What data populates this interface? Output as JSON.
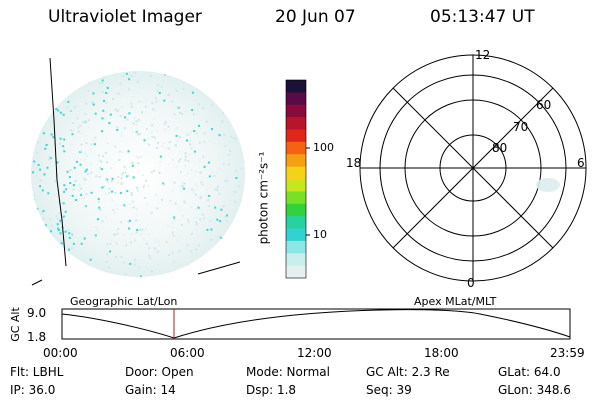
{
  "header": {
    "instrument": "Ultraviolet Imager",
    "date": "20 Jun 07",
    "time": "05:13:47 UT"
  },
  "colorbar": {
    "unit_label": "photon cm⁻²s⁻¹",
    "ticks": [
      "100",
      "10"
    ],
    "colors": [
      "#1a1038",
      "#5a0a46",
      "#8a0a3a",
      "#b8142a",
      "#e0281a",
      "#f26414",
      "#f5a012",
      "#f5d21a",
      "#c8e61e",
      "#78e028",
      "#32d23c",
      "#28d2a0",
      "#32d2d2",
      "#8ce6e6",
      "#c8eeee",
      "#e6f0f0"
    ]
  },
  "polar_plot": {
    "mlt_labels": [
      "12",
      "18",
      "6",
      "0"
    ],
    "mlat_labels": [
      "60",
      "70",
      "80"
    ]
  },
  "timeline": {
    "left_label": "Geographic Lat/Lon",
    "right_label": "Apex MLat/MLT",
    "axis_title": "GC Alt",
    "y_max": "9.0",
    "y_min": "1.8",
    "x_ticks": [
      "00:00",
      "06:00",
      "12:00",
      "18:00",
      "23:59"
    ],
    "current_marker_color": "#c01818"
  },
  "status": {
    "filter": "Flt: LBHL",
    "door": "Door: Open",
    "mode": "Mode: Normal",
    "gc_alt": "GC Alt: 2.3 Re",
    "glat": "GLat:  64.0",
    "ip": "IP: 36.0",
    "gain": "Gain: 14",
    "dsp": "Dsp:    1.8",
    "seq": "Seq: 39",
    "glon": "GLon: 348.6"
  }
}
